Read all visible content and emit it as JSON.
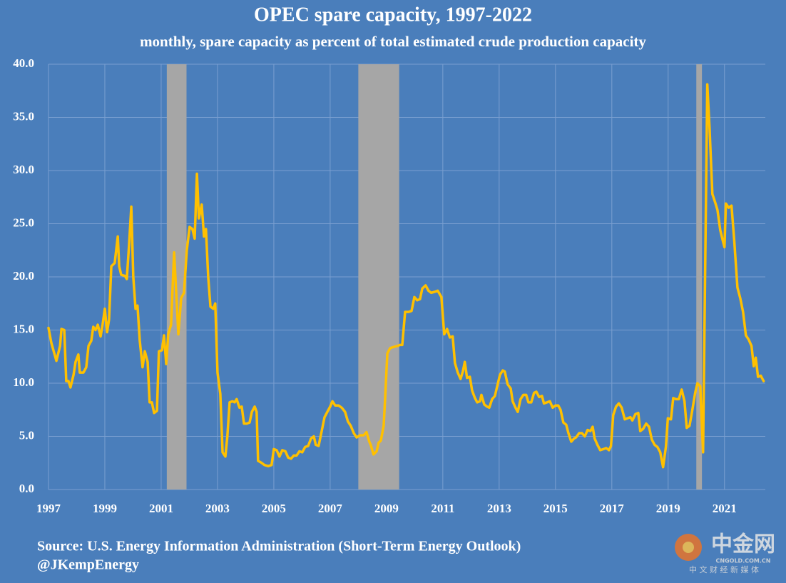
{
  "chart_data": {
    "type": "line",
    "title": "OPEC spare capacity, 1997-2022",
    "subtitle": "monthly, spare capacity as percent of  total estimated crude production capacity",
    "source": "Source: U.S. Energy Information Administration (Short-Term Energy Outlook)",
    "credit": "@JKempEnergy",
    "watermark": {
      "brand": "中金网",
      "site": "CNGOLD.COM.CN",
      "tagline": "中 文 财 经 新 媒 体"
    },
    "x": [
      1997.0,
      1997.1,
      1997.28,
      1997.41,
      1997.46,
      1997.56,
      1997.63,
      1997.71,
      1997.78,
      1997.89,
      1997.96,
      1998.06,
      1998.11,
      1998.24,
      1998.34,
      1998.42,
      1998.52,
      1998.59,
      1998.67,
      1998.75,
      1998.85,
      1998.92,
      1999.0,
      1999.08,
      1999.15,
      1999.23,
      1999.35,
      1999.46,
      1999.51,
      1999.58,
      1999.71,
      1999.78,
      1999.86,
      1999.94,
      2000.01,
      2000.09,
      2000.16,
      2000.24,
      2000.34,
      2000.42,
      2000.52,
      2000.59,
      2000.67,
      2000.75,
      2000.85,
      2000.92,
      2001.03,
      2001.1,
      2001.18,
      2001.25,
      2001.35,
      2001.46,
      2001.61,
      2001.71,
      2001.81,
      2001.91,
      2002.01,
      2002.11,
      2002.19,
      2002.27,
      2002.34,
      2002.44,
      2002.52,
      2002.59,
      2002.67,
      2002.75,
      2002.85,
      2002.92,
      2003.0,
      2003.1,
      2003.18,
      2003.28,
      2003.35,
      2003.43,
      2003.53,
      2003.61,
      2003.68,
      2003.78,
      2003.86,
      2003.94,
      2004.04,
      2004.14,
      2004.22,
      2004.32,
      2004.39,
      2004.44,
      2004.57,
      2004.67,
      2004.8,
      2004.92,
      2005.0,
      2005.1,
      2005.2,
      2005.3,
      2005.41,
      2005.51,
      2005.61,
      2005.71,
      2005.81,
      2005.91,
      2006.01,
      2006.11,
      2006.22,
      2006.32,
      2006.42,
      2006.49,
      2006.59,
      2006.7,
      2006.8,
      2006.9,
      2007.0,
      2007.08,
      2007.18,
      2007.3,
      2007.41,
      2007.53,
      2007.63,
      2007.73,
      2007.84,
      2007.94,
      2008.06,
      2008.19,
      2008.29,
      2008.39,
      2008.44,
      2008.54,
      2008.65,
      2008.72,
      2008.8,
      2008.9,
      2008.95,
      2009.03,
      2009.13,
      2009.25,
      2009.38,
      2009.48,
      2009.56,
      2009.66,
      2009.78,
      2009.89,
      2009.99,
      2010.09,
      2010.19,
      2010.27,
      2010.39,
      2010.49,
      2010.59,
      2010.72,
      2010.82,
      2010.95,
      2011.05,
      2011.15,
      2011.25,
      2011.35,
      2011.43,
      2011.53,
      2011.63,
      2011.71,
      2011.78,
      2011.86,
      2011.96,
      2012.04,
      2012.14,
      2012.22,
      2012.32,
      2012.37,
      2012.47,
      2012.57,
      2012.65,
      2012.75,
      2012.85,
      2012.92,
      2013.03,
      2013.13,
      2013.2,
      2013.3,
      2013.41,
      2013.48,
      2013.58,
      2013.66,
      2013.76,
      2013.86,
      2013.96,
      2014.04,
      2014.14,
      2014.24,
      2014.32,
      2014.42,
      2014.52,
      2014.59,
      2014.7,
      2014.8,
      2014.9,
      2015.0,
      2015.1,
      2015.18,
      2015.28,
      2015.38,
      2015.46,
      2015.56,
      2015.66,
      2015.73,
      2015.84,
      2015.94,
      2016.04,
      2016.14,
      2016.24,
      2016.32,
      2016.39,
      2016.49,
      2016.59,
      2016.7,
      2016.8,
      2016.9,
      2016.97,
      2017.05,
      2017.15,
      2017.25,
      2017.35,
      2017.46,
      2017.56,
      2017.66,
      2017.73,
      2017.84,
      2017.94,
      2018.01,
      2018.11,
      2018.22,
      2018.32,
      2018.42,
      2018.52,
      2018.62,
      2018.72,
      2018.82,
      2018.92,
      2018.99,
      2019.1,
      2019.18,
      2019.28,
      2019.38,
      2019.48,
      2019.58,
      2019.66,
      2019.76,
      2019.86,
      2019.96,
      2020.04,
      2020.14,
      2020.24,
      2020.32,
      2020.39,
      2020.47,
      2020.57,
      2020.67,
      2020.75,
      2020.85,
      2020.95,
      2021.0,
      2021.05,
      2021.15,
      2021.25,
      2021.35,
      2021.46,
      2021.56,
      2021.66,
      2021.76,
      2021.86,
      2021.96,
      2022.04,
      2022.11,
      2022.19,
      2022.29,
      2022.39
    ],
    "series": [
      {
        "color": "#ffc000",
        "values": [
          15.2,
          13.8,
          12.1,
          13.5,
          15.1,
          15.0,
          10.2,
          10.2,
          9.6,
          10.8,
          12.0,
          12.7,
          11.0,
          11.0,
          11.5,
          13.5,
          14.0,
          15.3,
          15.0,
          15.5,
          14.4,
          15.5,
          17.0,
          14.8,
          16.0,
          21.0,
          21.3,
          23.8,
          21.0,
          20.2,
          20.1,
          19.8,
          23.0,
          26.6,
          20.0,
          17.0,
          17.3,
          14.0,
          11.5,
          13.0,
          12.0,
          8.2,
          8.2,
          7.2,
          7.4,
          13.0,
          13.1,
          14.5,
          11.8,
          14.6,
          15.5,
          22.3,
          14.6,
          18.0,
          18.5,
          22.5,
          24.7,
          24.5,
          23.6,
          29.7,
          25.5,
          26.8,
          23.8,
          24.5,
          20.0,
          17.2,
          17.0,
          17.5,
          11.0,
          9.0,
          3.5,
          3.1,
          5.0,
          8.2,
          8.3,
          8.2,
          8.5,
          7.7,
          7.8,
          6.2,
          6.2,
          6.3,
          7.3,
          7.8,
          7.3,
          2.7,
          2.5,
          2.3,
          2.2,
          2.3,
          3.8,
          3.7,
          3.1,
          3.7,
          3.6,
          3.0,
          2.9,
          3.2,
          3.2,
          3.6,
          3.5,
          4.0,
          4.1,
          4.8,
          5.0,
          4.2,
          4.1,
          5.5,
          6.8,
          7.3,
          7.8,
          8.3,
          7.9,
          7.9,
          7.7,
          7.3,
          6.4,
          6.0,
          5.3,
          4.9,
          5.1,
          5.1,
          5.4,
          4.5,
          4.2,
          3.3,
          3.6,
          4.4,
          4.6,
          6.0,
          8.5,
          12.8,
          13.3,
          13.4,
          13.5,
          13.6,
          13.6,
          16.7,
          16.7,
          16.8,
          18.1,
          17.8,
          17.9,
          18.9,
          19.2,
          18.7,
          18.5,
          18.6,
          18.7,
          18.1,
          14.6,
          15.1,
          14.3,
          14.4,
          11.9,
          11.0,
          10.4,
          11.1,
          12.0,
          10.5,
          10.6,
          9.3,
          8.6,
          8.2,
          8.3,
          8.9,
          8.0,
          7.8,
          7.7,
          8.5,
          8.8,
          9.6,
          10.8,
          11.2,
          11.1,
          9.9,
          9.5,
          8.3,
          7.7,
          7.3,
          8.5,
          8.9,
          8.9,
          8.2,
          8.2,
          9.1,
          9.2,
          8.7,
          8.8,
          8.1,
          8.2,
          8.3,
          7.7,
          7.9,
          7.9,
          7.5,
          6.3,
          6.1,
          5.3,
          4.5,
          4.8,
          4.9,
          5.3,
          5.3,
          5.0,
          5.6,
          5.5,
          5.9,
          4.8,
          4.2,
          3.7,
          3.8,
          3.9,
          3.7,
          4.1,
          7.0,
          7.8,
          8.1,
          7.7,
          6.6,
          6.7,
          6.8,
          6.5,
          7.1,
          7.2,
          5.5,
          5.7,
          6.2,
          5.9,
          4.7,
          4.2,
          4.0,
          3.5,
          2.1,
          4.0,
          6.7,
          6.6,
          8.6,
          8.5,
          8.5,
          9.4,
          8.3,
          5.8,
          6.0,
          7.5,
          9.1,
          10.0,
          9.7,
          3.5,
          22.0,
          38.1,
          34.0,
          27.8,
          27.0,
          26.3,
          24.4,
          23.3,
          22.8,
          26.9,
          26.5,
          26.7,
          23.3,
          19.0,
          18.0,
          16.7,
          14.5,
          14.1,
          13.5,
          11.6,
          12.4,
          10.6,
          10.7,
          10.2
        ]
      }
    ],
    "shaded_periods": [
      [
        2001.2,
        2001.9
      ],
      [
        2008.0,
        2009.45
      ],
      [
        2020.0,
        2020.2
      ]
    ],
    "shade_color": "#a6a6a6",
    "xlim": [
      1997,
      2022.45
    ],
    "xticks": [
      1997,
      1999,
      2001,
      2003,
      2005,
      2007,
      2009,
      2011,
      2013,
      2015,
      2017,
      2019,
      2021
    ],
    "ylim": [
      0,
      40
    ],
    "yticks": [
      {
        "value": 0,
        "label": "0.0"
      },
      {
        "value": 5,
        "label": "5.0"
      },
      {
        "value": 10,
        "label": "10.0"
      },
      {
        "value": 15,
        "label": "15.0"
      },
      {
        "value": 20,
        "label": "20.0"
      },
      {
        "value": 25,
        "label": "25.0"
      },
      {
        "value": 30,
        "label": "30.0"
      },
      {
        "value": 35,
        "label": "35.0"
      },
      {
        "value": 40,
        "label": "40.0"
      }
    ],
    "grid": true
  }
}
